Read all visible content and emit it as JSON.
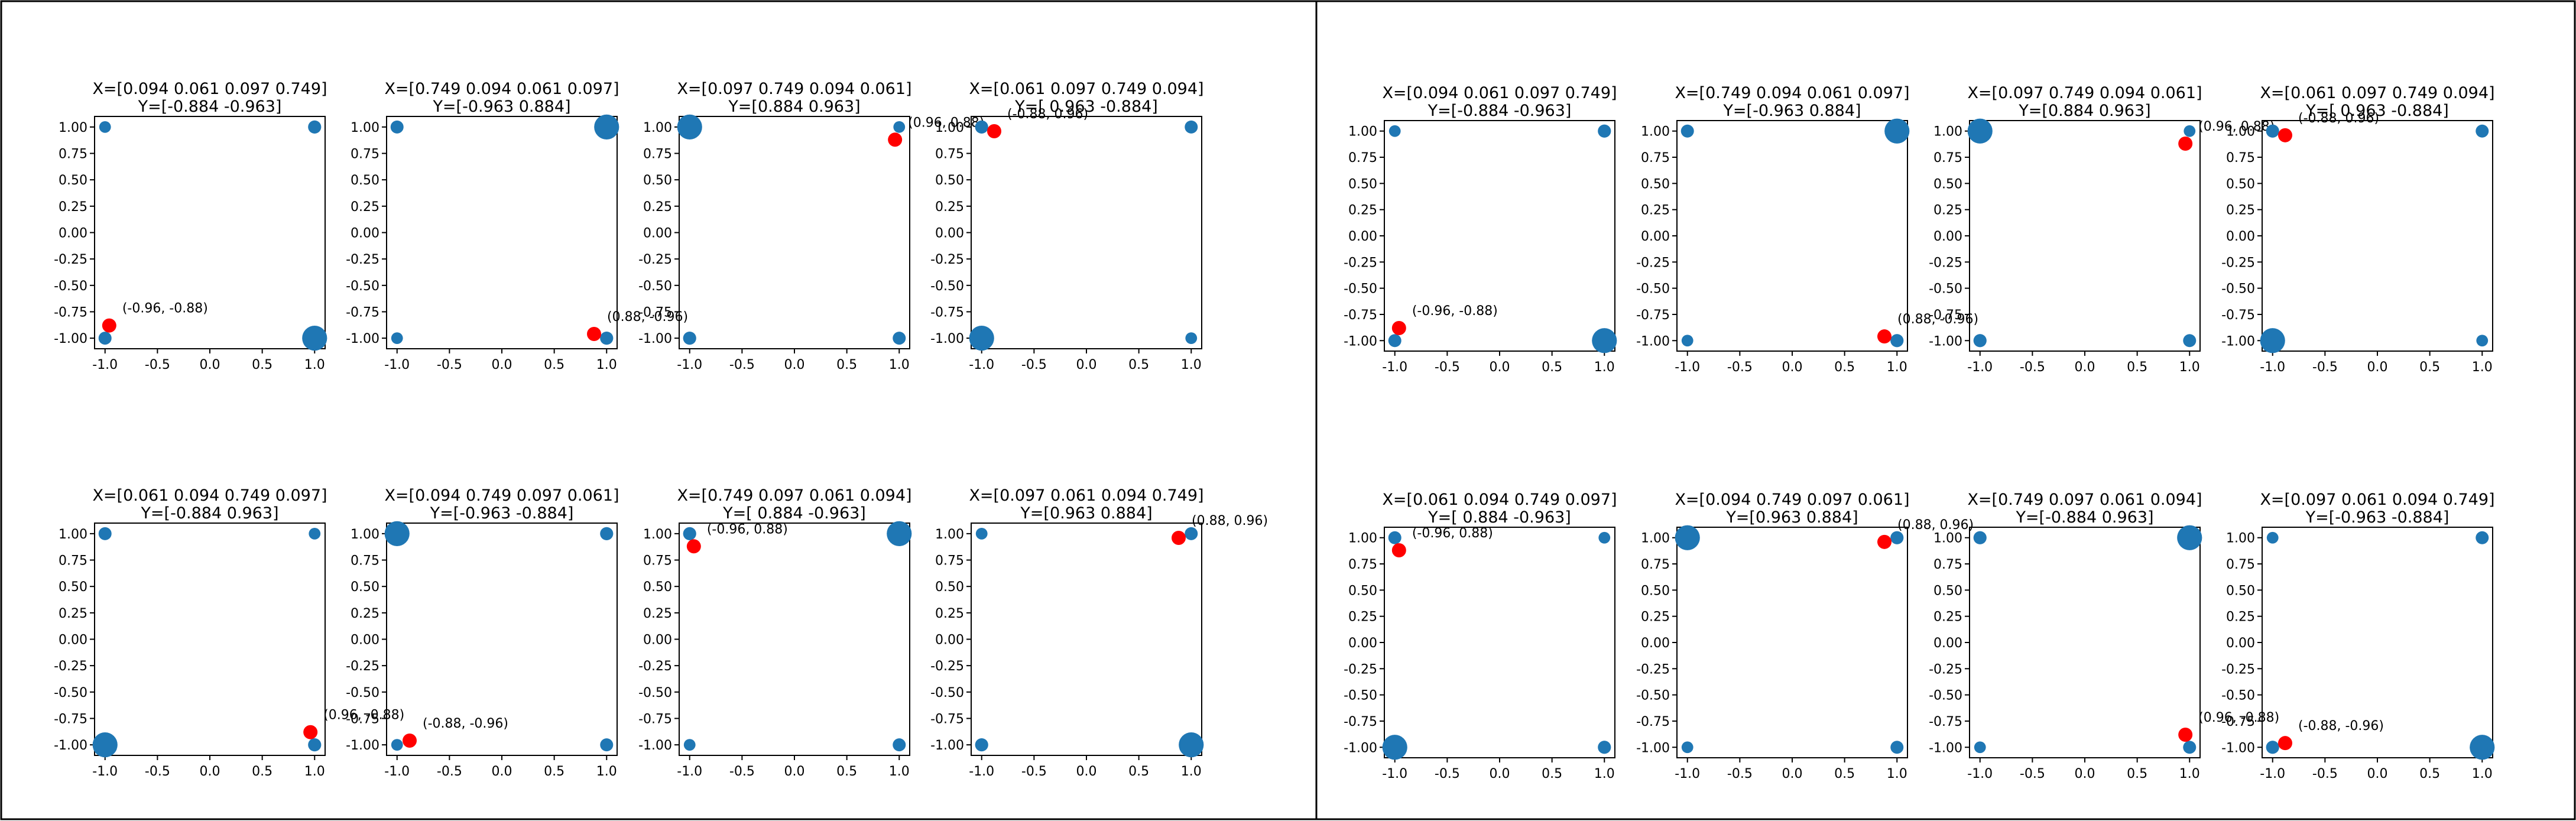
{
  "figure": {
    "colors": {
      "corner_point": "#1f77b4",
      "highlight_point": "#ff0000",
      "axis": "#000000",
      "frame": "#000000",
      "background": "#ffffff"
    },
    "ticks": [
      "-1.0",
      "-0.5",
      "0.0",
      "0.5",
      "1.0"
    ],
    "yticks": [
      "-1.00",
      "-0.75",
      "-0.50",
      "-0.25",
      "0.00",
      "0.25",
      "0.50",
      "0.75",
      "1.00"
    ]
  },
  "chart_data": [
    {
      "type": "scatter",
      "panel": "left",
      "row": 0,
      "col": 0,
      "title_line1": "X=[0.094 0.061 0.097 0.749]",
      "title_line2": "Y=[-0.884 -0.963]",
      "xlim": [
        -1.1,
        1.1
      ],
      "ylim": [
        -1.1,
        1.1
      ],
      "corners": [
        {
          "x": -1,
          "y": 1,
          "w": 0.061
        },
        {
          "x": 1,
          "y": 1,
          "w": 0.097
        },
        {
          "x": -1,
          "y": -1,
          "w": 0.094
        },
        {
          "x": 1,
          "y": -1,
          "w": 0.749
        }
      ],
      "highlight": {
        "x": -0.96,
        "y": -0.88,
        "label": "(-0.96, -0.88)"
      }
    },
    {
      "type": "scatter",
      "panel": "left",
      "row": 0,
      "col": 1,
      "title_line1": "X=[0.749 0.094 0.061 0.097]",
      "title_line2": "Y=[-0.963  0.884]",
      "xlim": [
        -1.1,
        1.1
      ],
      "ylim": [
        -1.1,
        1.1
      ],
      "corners": [
        {
          "x": -1,
          "y": 1,
          "w": 0.094
        },
        {
          "x": 1,
          "y": 1,
          "w": 0.749
        },
        {
          "x": -1,
          "y": -1,
          "w": 0.061
        },
        {
          "x": 1,
          "y": -1,
          "w": 0.097
        }
      ],
      "highlight": {
        "x": 0.88,
        "y": -0.96,
        "label": "(0.88, -0.96)"
      }
    },
    {
      "type": "scatter",
      "panel": "left",
      "row": 0,
      "col": 2,
      "title_line1": "X=[0.097 0.749 0.094 0.061]",
      "title_line2": "Y=[0.884 0.963]",
      "xlim": [
        -1.1,
        1.1
      ],
      "ylim": [
        -1.1,
        1.1
      ],
      "corners": [
        {
          "x": -1,
          "y": 1,
          "w": 0.749
        },
        {
          "x": 1,
          "y": 1,
          "w": 0.061
        },
        {
          "x": -1,
          "y": -1,
          "w": 0.097
        },
        {
          "x": 1,
          "y": -1,
          "w": 0.094
        }
      ],
      "highlight": {
        "x": 0.96,
        "y": 0.88,
        "label": "(0.96, 0.88)"
      }
    },
    {
      "type": "scatter",
      "panel": "left",
      "row": 0,
      "col": 3,
      "title_line1": "X=[0.061 0.097 0.749 0.094]",
      "title_line2": "Y=[ 0.963 -0.884]",
      "xlim": [
        -1.1,
        1.1
      ],
      "ylim": [
        -1.1,
        1.1
      ],
      "corners": [
        {
          "x": -1,
          "y": 1,
          "w": 0.097
        },
        {
          "x": 1,
          "y": 1,
          "w": 0.094
        },
        {
          "x": -1,
          "y": -1,
          "w": 0.749
        },
        {
          "x": 1,
          "y": -1,
          "w": 0.061
        }
      ],
      "highlight": {
        "x": -0.88,
        "y": 0.96,
        "label": "(-0.88, 0.96)"
      }
    },
    {
      "type": "scatter",
      "panel": "left",
      "row": 1,
      "col": 0,
      "title_line1": "X=[0.061 0.094 0.749 0.097]",
      "title_line2": "Y=[-0.884  0.963]",
      "xlim": [
        -1.1,
        1.1
      ],
      "ylim": [
        -1.1,
        1.1
      ],
      "corners": [
        {
          "x": -1,
          "y": 1,
          "w": 0.094
        },
        {
          "x": 1,
          "y": 1,
          "w": 0.061
        },
        {
          "x": -1,
          "y": -1,
          "w": 0.749
        },
        {
          "x": 1,
          "y": -1,
          "w": 0.097
        }
      ],
      "highlight": {
        "x": 0.96,
        "y": -0.88,
        "label": "(0.96, -0.88)"
      }
    },
    {
      "type": "scatter",
      "panel": "left",
      "row": 1,
      "col": 1,
      "title_line1": "X=[0.094 0.749 0.097 0.061]",
      "title_line2": "Y=[-0.963 -0.884]",
      "xlim": [
        -1.1,
        1.1
      ],
      "ylim": [
        -1.1,
        1.1
      ],
      "corners": [
        {
          "x": -1,
          "y": 1,
          "w": 0.749
        },
        {
          "x": 1,
          "y": 1,
          "w": 0.097
        },
        {
          "x": -1,
          "y": -1,
          "w": 0.061
        },
        {
          "x": 1,
          "y": -1,
          "w": 0.094
        }
      ],
      "highlight": {
        "x": -0.88,
        "y": -0.96,
        "label": "(-0.88, -0.96)"
      }
    },
    {
      "type": "scatter",
      "panel": "left",
      "row": 1,
      "col": 2,
      "title_line1": "X=[0.749 0.097 0.061 0.094]",
      "title_line2": "Y=[ 0.884 -0.963]",
      "xlim": [
        -1.1,
        1.1
      ],
      "ylim": [
        -1.1,
        1.1
      ],
      "corners": [
        {
          "x": -1,
          "y": 1,
          "w": 0.097
        },
        {
          "x": 1,
          "y": 1,
          "w": 0.749
        },
        {
          "x": -1,
          "y": -1,
          "w": 0.061
        },
        {
          "x": 1,
          "y": -1,
          "w": 0.094
        }
      ],
      "highlight": {
        "x": -0.96,
        "y": 0.88,
        "label": "(-0.96, 0.88)"
      }
    },
    {
      "type": "scatter",
      "panel": "left",
      "row": 1,
      "col": 3,
      "title_line1": "X=[0.097 0.061 0.094 0.749]",
      "title_line2": "Y=[0.963 0.884]",
      "xlim": [
        -1.1,
        1.1
      ],
      "ylim": [
        -1.1,
        1.1
      ],
      "corners": [
        {
          "x": -1,
          "y": 1,
          "w": 0.061
        },
        {
          "x": 1,
          "y": 1,
          "w": 0.094
        },
        {
          "x": -1,
          "y": -1,
          "w": 0.097
        },
        {
          "x": 1,
          "y": -1,
          "w": 0.749
        }
      ],
      "highlight": {
        "x": 0.88,
        "y": 0.96,
        "label": "(0.88, 0.96)"
      }
    },
    {
      "type": "scatter",
      "panel": "right",
      "row": 0,
      "col": 0,
      "title_line1": "X=[0.094 0.061 0.097 0.749]",
      "title_line2": "Y=[-0.884 -0.963]",
      "xlim": [
        -1.1,
        1.1
      ],
      "ylim": [
        -1.1,
        1.1
      ],
      "corners": [
        {
          "x": -1,
          "y": 1,
          "w": 0.061
        },
        {
          "x": 1,
          "y": 1,
          "w": 0.097
        },
        {
          "x": -1,
          "y": -1,
          "w": 0.094
        },
        {
          "x": 1,
          "y": -1,
          "w": 0.749
        }
      ],
      "highlight": {
        "x": -0.96,
        "y": -0.88,
        "label": "(-0.96, -0.88)"
      }
    },
    {
      "type": "scatter",
      "panel": "right",
      "row": 0,
      "col": 1,
      "title_line1": "X=[0.749 0.094 0.061 0.097]",
      "title_line2": "Y=[-0.963  0.884]",
      "xlim": [
        -1.1,
        1.1
      ],
      "ylim": [
        -1.1,
        1.1
      ],
      "corners": [
        {
          "x": -1,
          "y": 1,
          "w": 0.094
        },
        {
          "x": 1,
          "y": 1,
          "w": 0.749
        },
        {
          "x": -1,
          "y": -1,
          "w": 0.061
        },
        {
          "x": 1,
          "y": -1,
          "w": 0.097
        }
      ],
      "highlight": {
        "x": 0.88,
        "y": -0.96,
        "label": "(0.88, -0.96)"
      }
    },
    {
      "type": "scatter",
      "panel": "right",
      "row": 0,
      "col": 2,
      "title_line1": "X=[0.097 0.749 0.094 0.061]",
      "title_line2": "Y=[0.884 0.963]",
      "xlim": [
        -1.1,
        1.1
      ],
      "ylim": [
        -1.1,
        1.1
      ],
      "corners": [
        {
          "x": -1,
          "y": 1,
          "w": 0.749
        },
        {
          "x": 1,
          "y": 1,
          "w": 0.061
        },
        {
          "x": -1,
          "y": -1,
          "w": 0.097
        },
        {
          "x": 1,
          "y": -1,
          "w": 0.094
        }
      ],
      "highlight": {
        "x": 0.96,
        "y": 0.88,
        "label": "(0.96, 0.88)"
      }
    },
    {
      "type": "scatter",
      "panel": "right",
      "row": 0,
      "col": 3,
      "title_line1": "X=[0.061 0.097 0.749 0.094]",
      "title_line2": "Y=[ 0.963 -0.884]",
      "xlim": [
        -1.1,
        1.1
      ],
      "ylim": [
        -1.1,
        1.1
      ],
      "corners": [
        {
          "x": -1,
          "y": 1,
          "w": 0.097
        },
        {
          "x": 1,
          "y": 1,
          "w": 0.094
        },
        {
          "x": -1,
          "y": -1,
          "w": 0.749
        },
        {
          "x": 1,
          "y": -1,
          "w": 0.061
        }
      ],
      "highlight": {
        "x": -0.88,
        "y": 0.96,
        "label": "(-0.88, 0.96)"
      }
    },
    {
      "type": "scatter",
      "panel": "right",
      "row": 1,
      "col": 0,
      "title_line1": "X=[0.061 0.094 0.749 0.097]",
      "title_line2": "Y=[ 0.884 -0.963]",
      "xlim": [
        -1.1,
        1.1
      ],
      "ylim": [
        -1.1,
        1.1
      ],
      "corners": [
        {
          "x": -1,
          "y": 1,
          "w": 0.094
        },
        {
          "x": 1,
          "y": 1,
          "w": 0.061
        },
        {
          "x": -1,
          "y": -1,
          "w": 0.749
        },
        {
          "x": 1,
          "y": -1,
          "w": 0.097
        }
      ],
      "highlight": {
        "x": -0.96,
        "y": 0.88,
        "label": "(-0.96, 0.88)"
      }
    },
    {
      "type": "scatter",
      "panel": "right",
      "row": 1,
      "col": 1,
      "title_line1": "X=[0.094 0.749 0.097 0.061]",
      "title_line2": "Y=[0.963 0.884]",
      "xlim": [
        -1.1,
        1.1
      ],
      "ylim": [
        -1.1,
        1.1
      ],
      "corners": [
        {
          "x": -1,
          "y": 1,
          "w": 0.749
        },
        {
          "x": 1,
          "y": 1,
          "w": 0.097
        },
        {
          "x": -1,
          "y": -1,
          "w": 0.061
        },
        {
          "x": 1,
          "y": -1,
          "w": 0.094
        }
      ],
      "highlight": {
        "x": 0.88,
        "y": 0.96,
        "label": "(0.88, 0.96)"
      }
    },
    {
      "type": "scatter",
      "panel": "right",
      "row": 1,
      "col": 2,
      "title_line1": "X=[0.749 0.097 0.061 0.094]",
      "title_line2": "Y=[-0.884  0.963]",
      "xlim": [
        -1.1,
        1.1
      ],
      "ylim": [
        -1.1,
        1.1
      ],
      "corners": [
        {
          "x": -1,
          "y": 1,
          "w": 0.097
        },
        {
          "x": 1,
          "y": 1,
          "w": 0.749
        },
        {
          "x": -1,
          "y": -1,
          "w": 0.061
        },
        {
          "x": 1,
          "y": -1,
          "w": 0.094
        }
      ],
      "highlight": {
        "x": 0.96,
        "y": -0.88,
        "label": "(0.96, -0.88)"
      }
    },
    {
      "type": "scatter",
      "panel": "right",
      "row": 1,
      "col": 3,
      "title_line1": "X=[0.097 0.061 0.094 0.749]",
      "title_line2": "Y=[-0.963 -0.884]",
      "xlim": [
        -1.1,
        1.1
      ],
      "ylim": [
        -1.1,
        1.1
      ],
      "corners": [
        {
          "x": -1,
          "y": 1,
          "w": 0.061
        },
        {
          "x": 1,
          "y": 1,
          "w": 0.094
        },
        {
          "x": -1,
          "y": -1,
          "w": 0.097
        },
        {
          "x": 1,
          "y": -1,
          "w": 0.749
        }
      ],
      "highlight": {
        "x": -0.88,
        "y": -0.96,
        "label": "(-0.88, -0.96)"
      }
    }
  ]
}
